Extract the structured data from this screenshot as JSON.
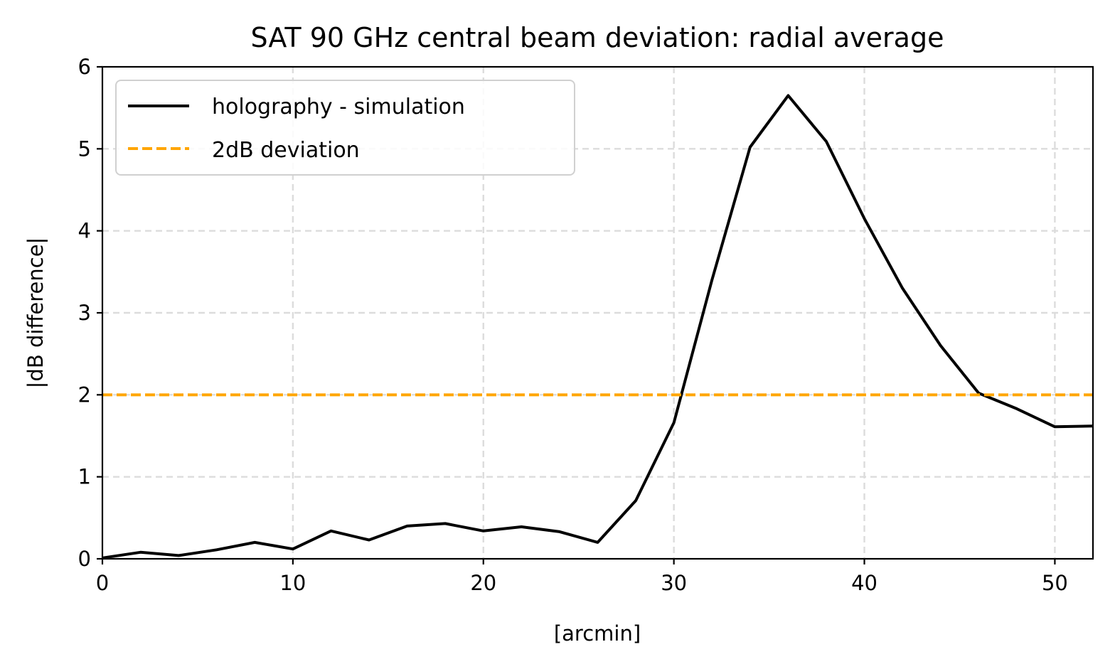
{
  "chart_data": {
    "type": "line",
    "title": "SAT 90 GHz central beam deviation: radial average",
    "xlabel": "[arcmin]",
    "ylabel": "|dB difference|",
    "xlim": [
      0,
      52
    ],
    "ylim": [
      0,
      6
    ],
    "xticks": [
      0,
      10,
      20,
      30,
      40,
      50
    ],
    "yticks": [
      0,
      1,
      2,
      3,
      4,
      5,
      6
    ],
    "grid": true,
    "legend_position": "upper-left",
    "series": [
      {
        "name": "holography - simulation",
        "color": "#000000",
        "style": "solid",
        "x": [
          0,
          2,
          4,
          6,
          8,
          10,
          12,
          14,
          16,
          18,
          20,
          22,
          24,
          26,
          28,
          30,
          32,
          34,
          36,
          38,
          40,
          42,
          44,
          46,
          48,
          50,
          52
        ],
        "y": [
          0.01,
          0.08,
          0.04,
          0.11,
          0.2,
          0.12,
          0.34,
          0.23,
          0.4,
          0.43,
          0.34,
          0.39,
          0.33,
          0.2,
          0.71,
          1.66,
          3.4,
          5.02,
          5.65,
          5.09,
          4.15,
          3.3,
          2.6,
          2.02,
          1.83,
          1.61,
          1.62
        ]
      },
      {
        "name": "2dB deviation",
        "color": "#ffa500",
        "style": "dashed",
        "constant": 2
      }
    ]
  }
}
